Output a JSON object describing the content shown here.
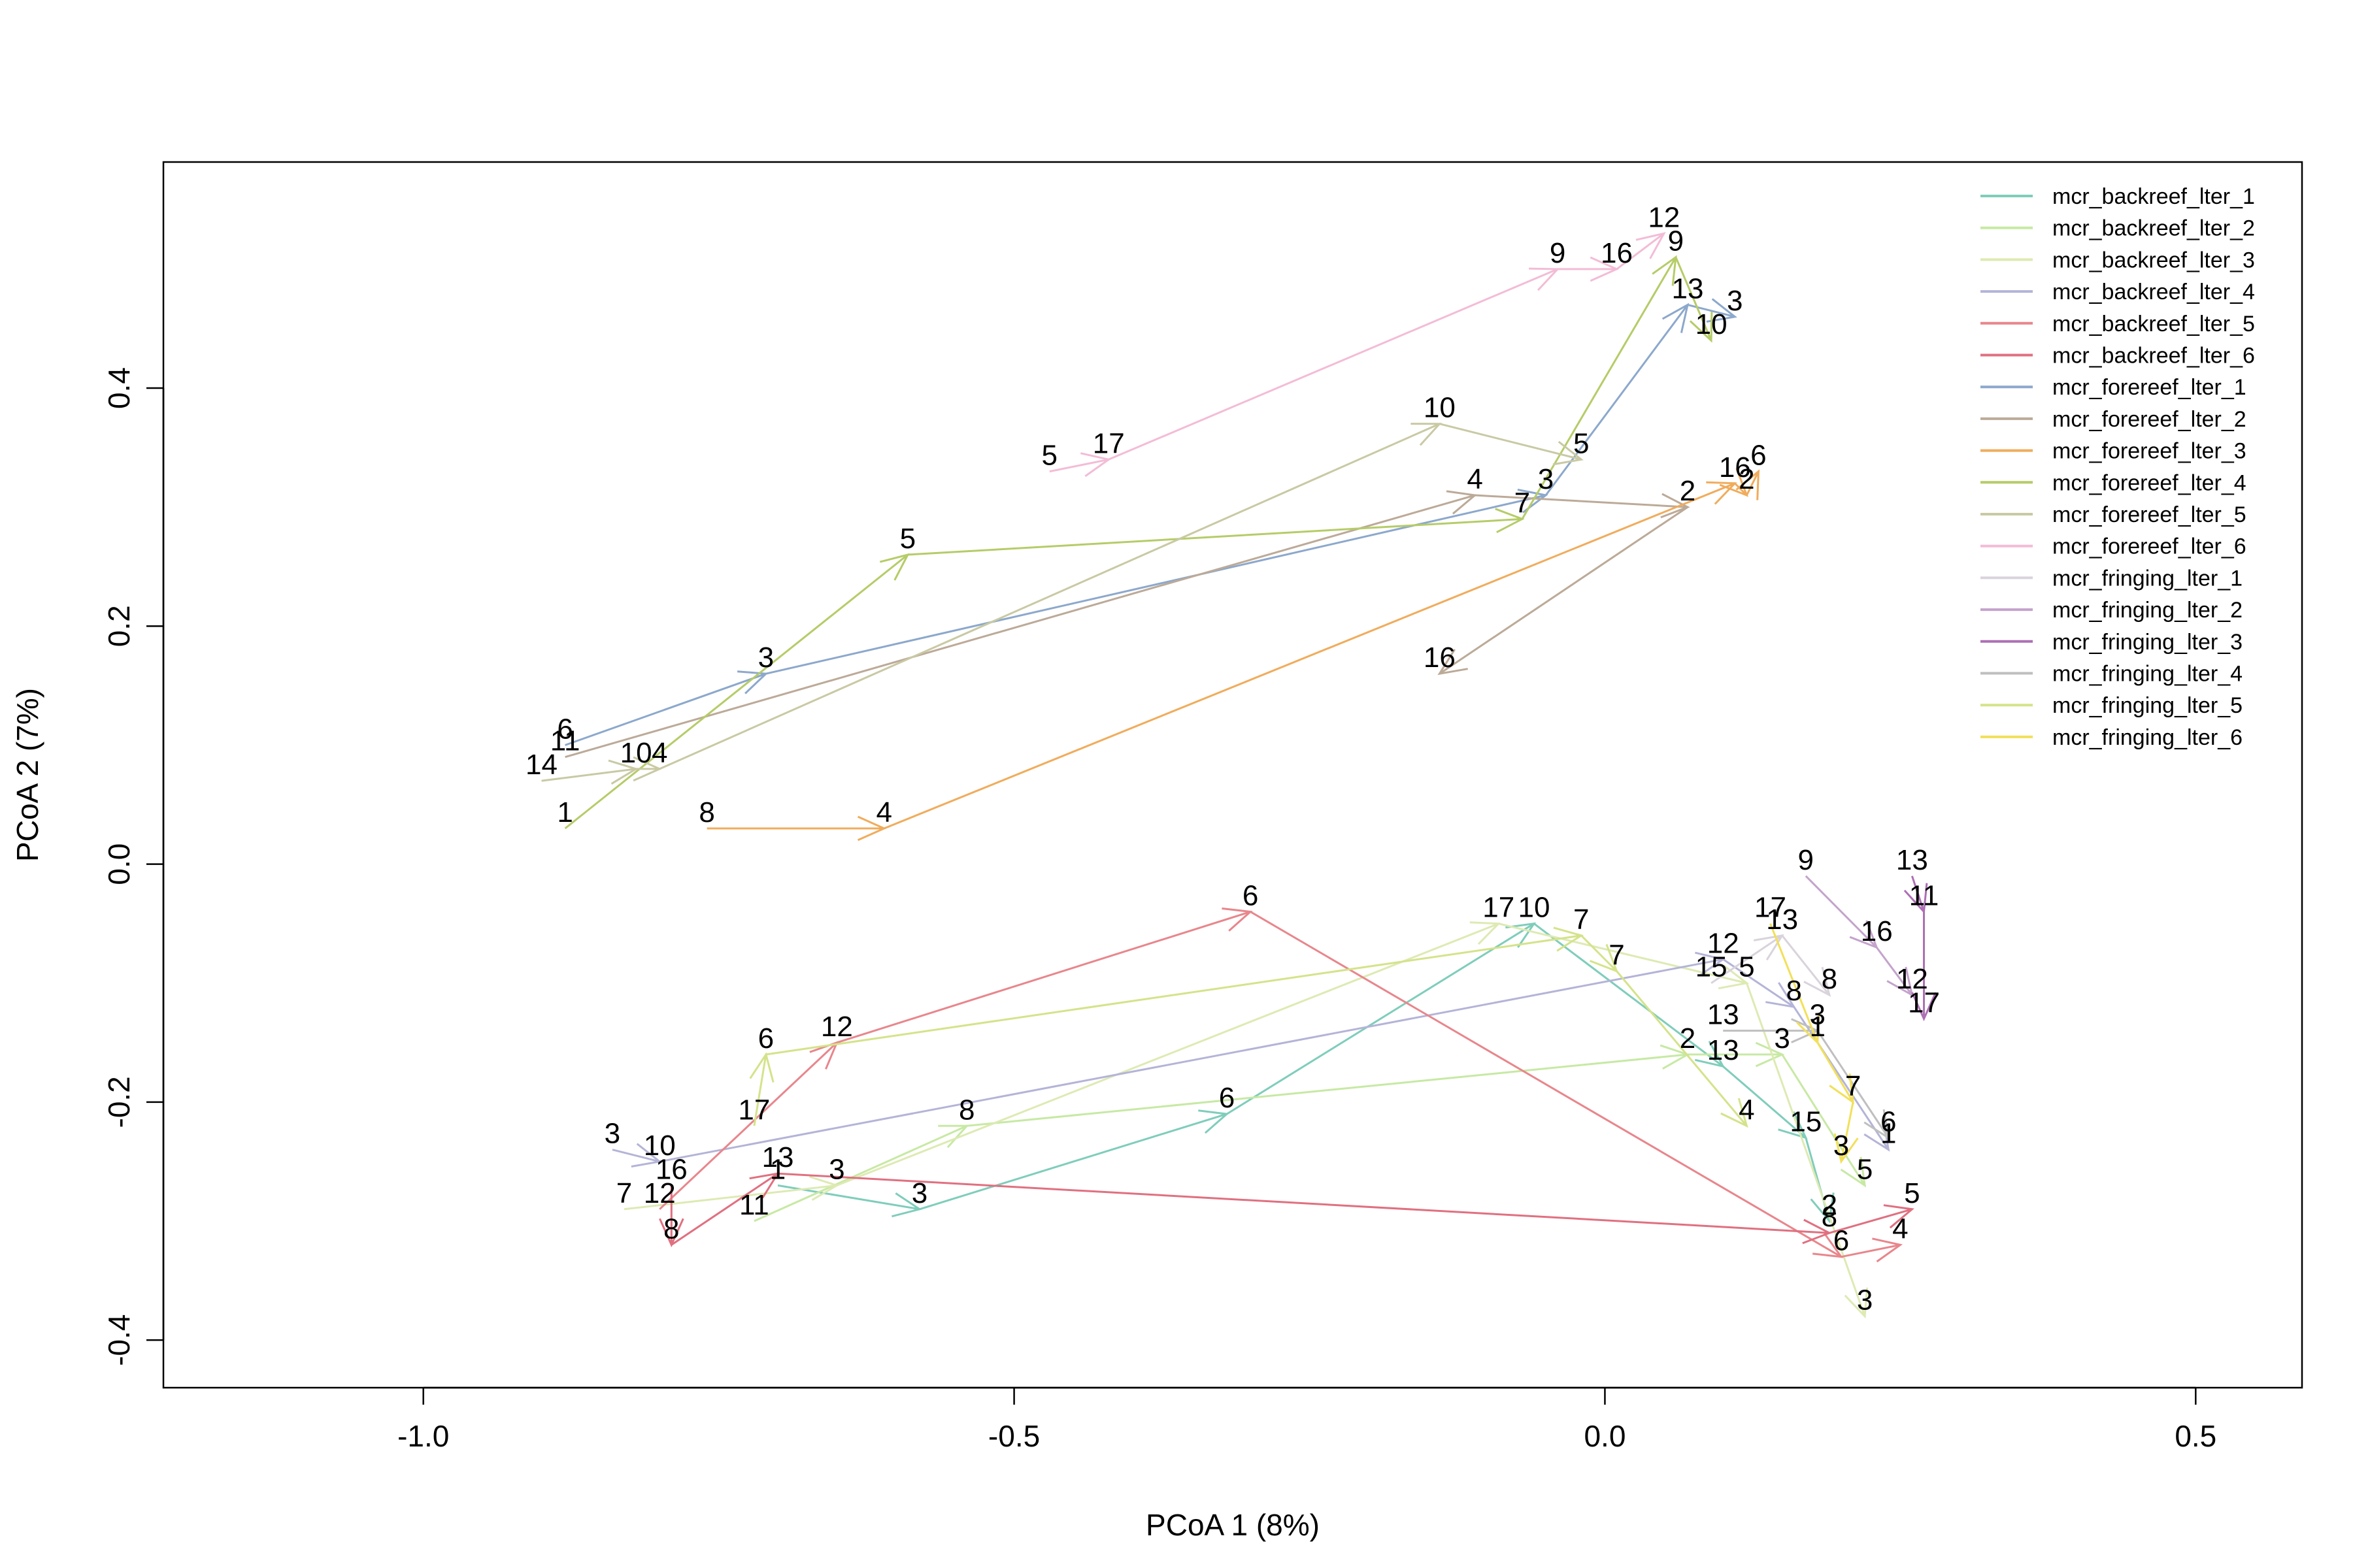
{
  "chart_data": {
    "type": "scatter",
    "title": "",
    "xlabel": "PCoA 1 (8%)",
    "ylabel": "PCoA 2 (7%)",
    "xlim": [
      -1.22,
      0.59
    ],
    "ylim": [
      -0.44,
      0.59
    ],
    "x_ticks": [
      -1.0,
      -0.5,
      0.0,
      0.5
    ],
    "x_tick_labels": [
      "-1.0",
      "-0.5",
      "0.0",
      "0.5"
    ],
    "y_ticks": [
      -0.4,
      -0.2,
      0.0,
      0.2,
      0.4
    ],
    "y_tick_labels": [
      "-0.4",
      "-0.2",
      "0.0",
      "0.2",
      "0.4"
    ],
    "grid": false,
    "legend_position": "top-right",
    "series": [
      {
        "name": "mcr_backreef_lter_1",
        "color": "#7FCDBB",
        "points": [
          {
            "x": -0.7,
            "y": -0.27,
            "label": "1"
          },
          {
            "x": -0.58,
            "y": -0.29,
            "label": "3"
          },
          {
            "x": -0.32,
            "y": -0.21,
            "label": "6"
          },
          {
            "x": -0.06,
            "y": -0.05,
            "label": "10"
          },
          {
            "x": 0.1,
            "y": -0.17,
            "label": "13"
          },
          {
            "x": 0.17,
            "y": -0.23,
            "label": "15"
          },
          {
            "x": 0.19,
            "y": -0.3,
            "label": "2"
          }
        ]
      },
      {
        "name": "mcr_backreef_lter_2",
        "color": "#C7E9A4",
        "points": [
          {
            "x": -0.72,
            "y": -0.3,
            "label": "11"
          },
          {
            "x": -0.54,
            "y": -0.22,
            "label": "8"
          },
          {
            "x": 0.07,
            "y": -0.16,
            "label": "2"
          },
          {
            "x": 0.15,
            "y": -0.16,
            "label": "3"
          },
          {
            "x": 0.22,
            "y": -0.27,
            "label": "5"
          }
        ]
      },
      {
        "name": "mcr_backreef_lter_3",
        "color": "#DDEAB3",
        "points": [
          {
            "x": -0.83,
            "y": -0.29,
            "label": "7"
          },
          {
            "x": -0.65,
            "y": -0.27,
            "label": "3"
          },
          {
            "x": -0.09,
            "y": -0.05,
            "label": "17"
          },
          {
            "x": 0.12,
            "y": -0.1,
            "label": "5"
          },
          {
            "x": 0.22,
            "y": -0.38,
            "label": "3"
          }
        ]
      },
      {
        "name": "mcr_backreef_lter_4",
        "color": "#B4B4D8",
        "points": [
          {
            "x": -0.84,
            "y": -0.24,
            "label": "3"
          },
          {
            "x": -0.8,
            "y": -0.25,
            "label": "10"
          },
          {
            "x": 0.1,
            "y": -0.08,
            "label": "12"
          },
          {
            "x": 0.16,
            "y": -0.12,
            "label": "8"
          },
          {
            "x": 0.24,
            "y": -0.24,
            "label": "1"
          }
        ]
      },
      {
        "name": "mcr_backreef_lter_5",
        "color": "#E8868C",
        "points": [
          {
            "x": -0.8,
            "y": -0.29,
            "label": "12"
          },
          {
            "x": -0.65,
            "y": -0.15,
            "label": "12"
          },
          {
            "x": -0.3,
            "y": -0.04,
            "label": "6"
          },
          {
            "x": 0.2,
            "y": -0.33,
            "label": "6"
          },
          {
            "x": 0.25,
            "y": -0.32,
            "label": "4"
          }
        ]
      },
      {
        "name": "mcr_backreef_lter_6",
        "color": "#E07080",
        "points": [
          {
            "x": -0.79,
            "y": -0.27,
            "label": "16"
          },
          {
            "x": -0.79,
            "y": -0.32,
            "label": "8"
          },
          {
            "x": -0.7,
            "y": -0.26,
            "label": "13"
          },
          {
            "x": 0.19,
            "y": -0.31,
            "label": "8"
          },
          {
            "x": 0.26,
            "y": -0.29,
            "label": "5"
          }
        ]
      },
      {
        "name": "mcr_forereef_lter_1",
        "color": "#8CA8CC",
        "points": [
          {
            "x": -0.88,
            "y": 0.1,
            "label": "6"
          },
          {
            "x": -0.71,
            "y": 0.16,
            "label": "3"
          },
          {
            "x": -0.05,
            "y": 0.31,
            "label": "3"
          },
          {
            "x": 0.07,
            "y": 0.47,
            "label": "13"
          },
          {
            "x": 0.11,
            "y": 0.46,
            "label": "3"
          }
        ]
      },
      {
        "name": "mcr_forereef_lter_2",
        "color": "#BCAA98",
        "points": [
          {
            "x": -0.88,
            "y": 0.09,
            "label": "11"
          },
          {
            "x": -0.11,
            "y": 0.31,
            "label": "4"
          },
          {
            "x": 0.07,
            "y": 0.3,
            "label": "2"
          },
          {
            "x": -0.14,
            "y": 0.16,
            "label": "16"
          }
        ]
      },
      {
        "name": "mcr_forereef_lter_3",
        "color": "#F0AC5C",
        "points": [
          {
            "x": -0.76,
            "y": 0.03,
            "label": "8"
          },
          {
            "x": -0.61,
            "y": 0.03,
            "label": "4"
          },
          {
            "x": 0.11,
            "y": 0.32,
            "label": "16"
          },
          {
            "x": 0.12,
            "y": 0.31,
            "label": "2"
          },
          {
            "x": 0.13,
            "y": 0.33,
            "label": "6"
          }
        ]
      },
      {
        "name": "mcr_forereef_lter_4",
        "color": "#B5CC68",
        "points": [
          {
            "x": -0.88,
            "y": 0.03,
            "label": "1"
          },
          {
            "x": -0.59,
            "y": 0.26,
            "label": "5"
          },
          {
            "x": -0.07,
            "y": 0.29,
            "label": "7"
          },
          {
            "x": 0.06,
            "y": 0.51,
            "label": "9"
          },
          {
            "x": 0.09,
            "y": 0.44,
            "label": "10"
          }
        ]
      },
      {
        "name": "mcr_forereef_lter_5",
        "color": "#C9C9A4",
        "points": [
          {
            "x": -0.9,
            "y": 0.07,
            "label": "14"
          },
          {
            "x": -0.82,
            "y": 0.08,
            "label": "10"
          },
          {
            "x": -0.8,
            "y": 0.08,
            "label": "4"
          },
          {
            "x": -0.14,
            "y": 0.37,
            "label": "10"
          },
          {
            "x": -0.02,
            "y": 0.34,
            "label": "5"
          }
        ]
      },
      {
        "name": "mcr_forereef_lter_6",
        "color": "#F3BCD6",
        "points": [
          {
            "x": -0.47,
            "y": 0.33,
            "label": "5"
          },
          {
            "x": -0.42,
            "y": 0.34,
            "label": "17"
          },
          {
            "x": -0.04,
            "y": 0.5,
            "label": "9"
          },
          {
            "x": 0.01,
            "y": 0.5,
            "label": "16"
          },
          {
            "x": 0.05,
            "y": 0.53,
            "label": "12"
          }
        ]
      },
      {
        "name": "mcr_fringing_lter_1",
        "color": "#D9D3DC",
        "points": [
          {
            "x": 0.09,
            "y": -0.1,
            "label": "15"
          },
          {
            "x": 0.15,
            "y": -0.06,
            "label": "13"
          },
          {
            "x": 0.19,
            "y": -0.11,
            "label": "8"
          }
        ]
      },
      {
        "name": "mcr_fringing_lter_2",
        "color": "#C4A3CC",
        "points": [
          {
            "x": 0.17,
            "y": -0.01,
            "label": "9"
          },
          {
            "x": 0.23,
            "y": -0.07,
            "label": "16"
          },
          {
            "x": 0.26,
            "y": -0.11,
            "label": "12"
          }
        ]
      },
      {
        "name": "mcr_fringing_lter_3",
        "color": "#AD6FB5",
        "points": [
          {
            "x": 0.26,
            "y": -0.01,
            "label": "13"
          },
          {
            "x": 0.27,
            "y": -0.04,
            "label": "11"
          },
          {
            "x": 0.27,
            "y": -0.13,
            "label": "17"
          }
        ]
      },
      {
        "name": "mcr_fringing_lter_4",
        "color": "#BFBFBF",
        "points": [
          {
            "x": 0.1,
            "y": -0.14,
            "label": "13"
          },
          {
            "x": 0.18,
            "y": -0.14,
            "label": "3"
          },
          {
            "x": 0.24,
            "y": -0.23,
            "label": "6"
          }
        ]
      },
      {
        "name": "mcr_fringing_lter_5",
        "color": "#D4E38A",
        "points": [
          {
            "x": -0.72,
            "y": -0.22,
            "label": "17"
          },
          {
            "x": -0.71,
            "y": -0.16,
            "label": "6"
          },
          {
            "x": -0.02,
            "y": -0.06,
            "label": "7"
          },
          {
            "x": 0.01,
            "y": -0.09,
            "label": "7"
          },
          {
            "x": 0.12,
            "y": -0.22,
            "label": "4"
          }
        ]
      },
      {
        "name": "mcr_fringing_lter_6",
        "color": "#F2E05A",
        "points": [
          {
            "x": 0.14,
            "y": -0.05,
            "label": "17"
          },
          {
            "x": 0.18,
            "y": -0.15,
            "label": "1"
          },
          {
            "x": 0.21,
            "y": -0.2,
            "label": "7"
          },
          {
            "x": 0.2,
            "y": -0.25,
            "label": "3"
          }
        ]
      }
    ]
  }
}
